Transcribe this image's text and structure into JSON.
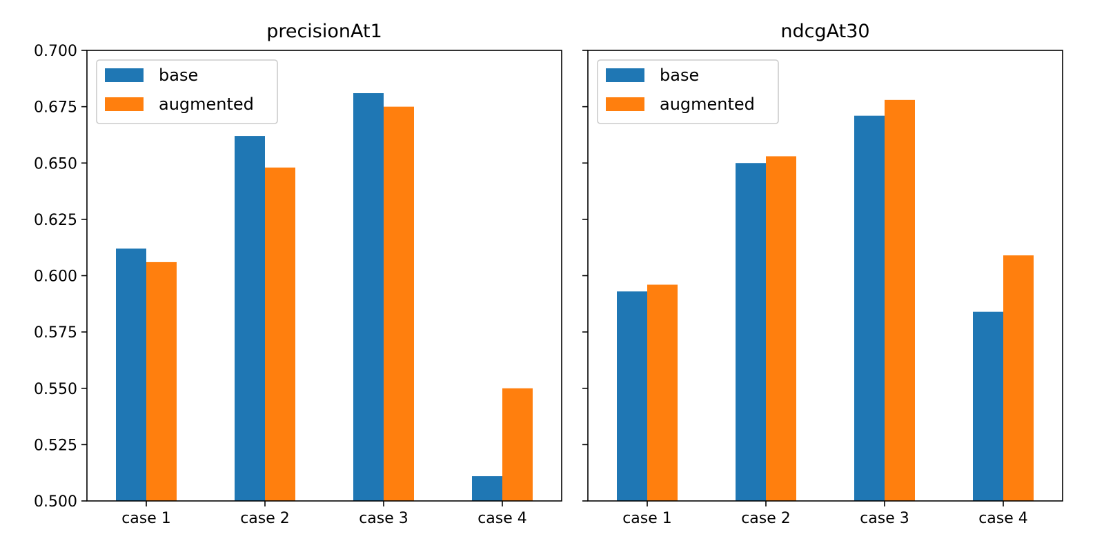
{
  "chart_data": [
    {
      "type": "bar",
      "title": "precisionAt1",
      "xlabel": "",
      "ylabel": "",
      "categories": [
        "case 1",
        "case 2",
        "case 3",
        "case 4"
      ],
      "series": [
        {
          "name": "base",
          "values": [
            0.612,
            0.662,
            0.681,
            0.511
          ]
        },
        {
          "name": "augmented",
          "values": [
            0.606,
            0.648,
            0.675,
            0.55
          ]
        }
      ],
      "ylim": [
        0.5,
        0.7
      ],
      "yticks": [
        "0.500",
        "0.525",
        "0.550",
        "0.575",
        "0.600",
        "0.625",
        "0.650",
        "0.675",
        "0.700"
      ],
      "legend": "upper-left",
      "grid": false
    },
    {
      "type": "bar",
      "title": "ndcgAt30",
      "xlabel": "",
      "ylabel": "",
      "categories": [
        "case 1",
        "case 2",
        "case 3",
        "case 4"
      ],
      "series": [
        {
          "name": "base",
          "values": [
            0.593,
            0.65,
            0.671,
            0.584
          ]
        },
        {
          "name": "augmented",
          "values": [
            0.596,
            0.653,
            0.678,
            0.609
          ]
        }
      ],
      "ylim": [
        0.5,
        0.7
      ],
      "yticks": [],
      "legend": "upper-left",
      "grid": false
    }
  ],
  "colors": {
    "base": "#1f77b4",
    "augmented": "#ff7f0e"
  }
}
